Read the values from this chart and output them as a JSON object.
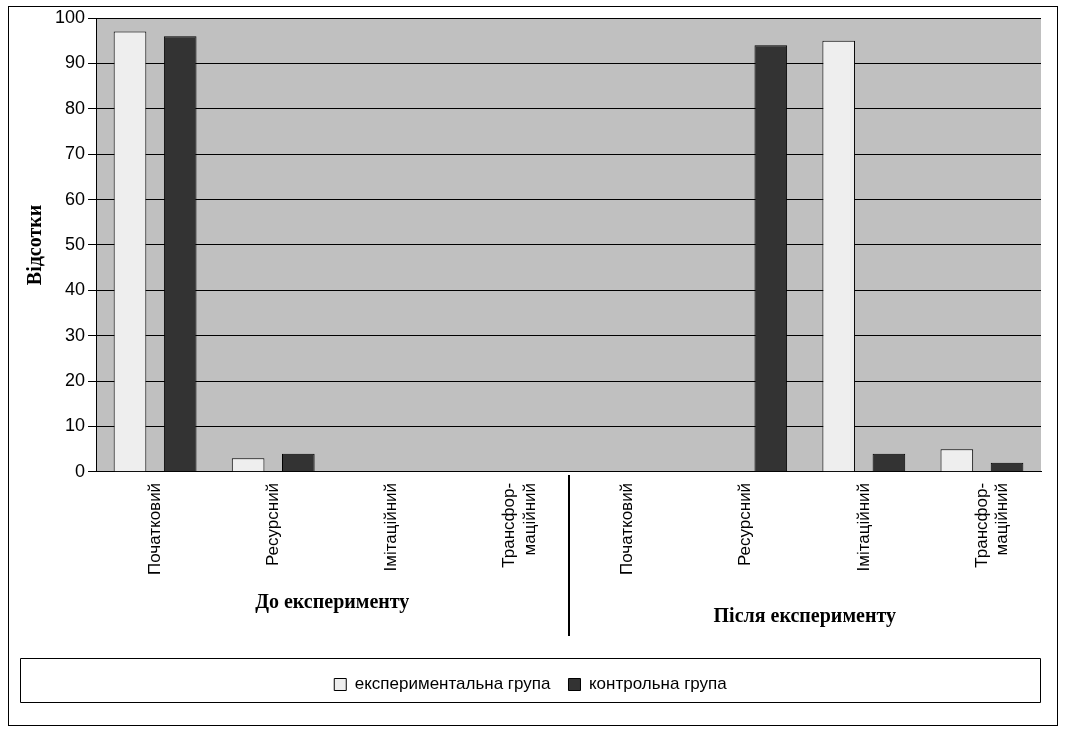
{
  "chart_data": {
    "type": "bar",
    "ylabel": "Відсотки",
    "categories": [
      "Початковий",
      "Ресурсний",
      "Імітаційний",
      "Трансфор-\nмаційний",
      "Початковий",
      "Ресурсний",
      "Імітаційний",
      "Трансфор-\nмаційний"
    ],
    "series": [
      {
        "name": "експериментальна група",
        "color": "#eeeeee",
        "values": [
          97,
          3,
          0,
          0,
          0,
          0,
          95,
          5
        ]
      },
      {
        "name": "контрольна група",
        "color": "#333333",
        "values": [
          96,
          4,
          0,
          0,
          0,
          94,
          4,
          2
        ]
      }
    ],
    "ylim": [
      0,
      100
    ],
    "yticks": [
      0,
      10,
      20,
      30,
      40,
      50,
      60,
      70,
      80,
      90,
      100
    ],
    "grid": "y",
    "legend": "bottom",
    "annotations": [
      "До експерименту",
      "Після експерименту"
    ]
  }
}
